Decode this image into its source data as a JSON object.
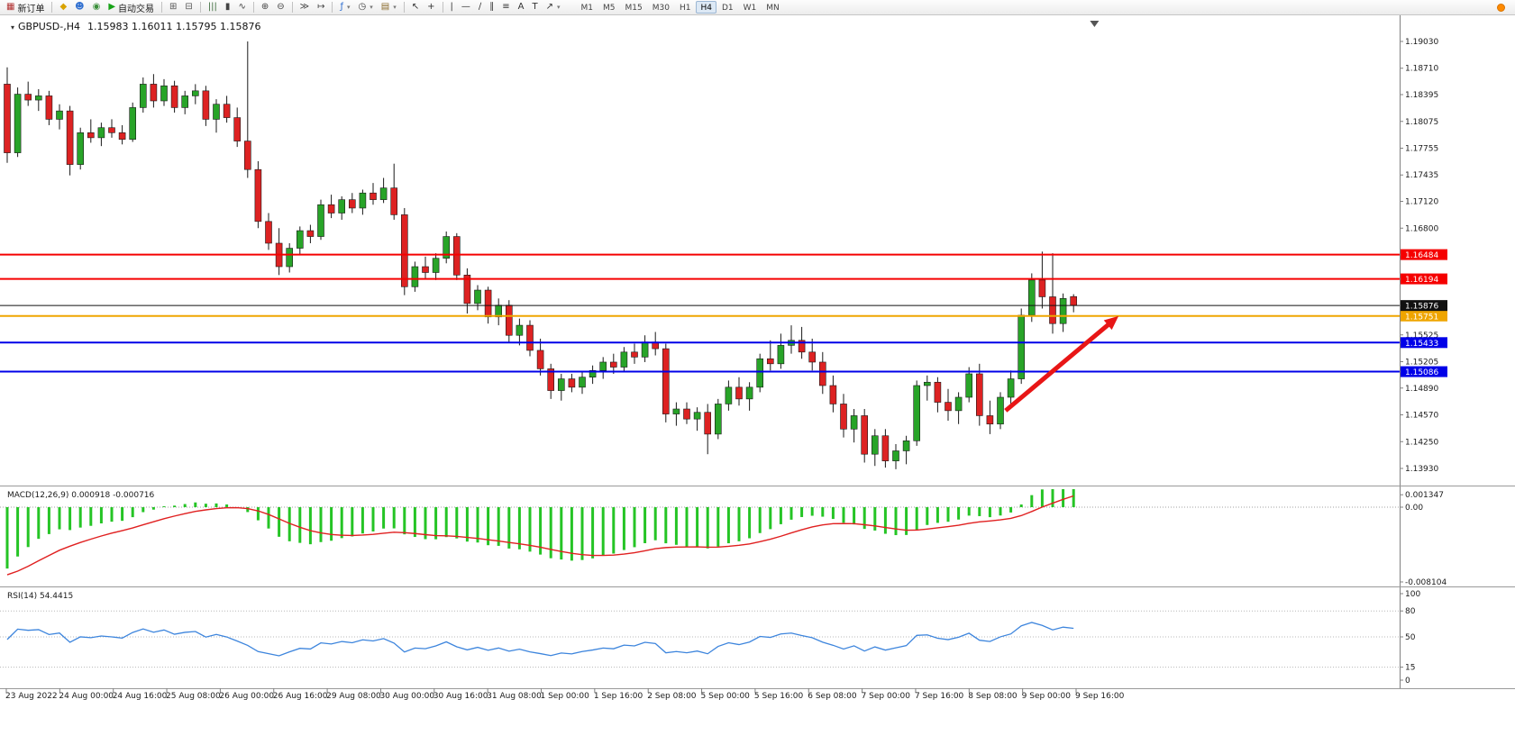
{
  "colors": {
    "bull": "#28a428",
    "bear": "#dd2222",
    "wick": "#1a1a1a",
    "macd_hist": "#25c425",
    "macd_signal": "#e02020",
    "rsi_line": "#3d85dd",
    "level_red": "#f50000",
    "level_blue": "#0000e8",
    "level_orange": "#efa500",
    "price_line": "#111111",
    "axis_text": "#1a1a1a"
  },
  "toolbar": {
    "items": [
      {
        "name": "new-order-button",
        "glyph": "▦",
        "color": "#b03030",
        "label": "新订单"
      },
      {
        "sep": true
      },
      {
        "name": "metaeditor-button",
        "glyph": "◆",
        "color": "#d9a300"
      },
      {
        "name": "community-button",
        "glyph": "☻",
        "color": "#2f6fd0"
      },
      {
        "name": "help-button",
        "glyph": "◉",
        "color": "#3a8f3a"
      },
      {
        "name": "autotrading-button",
        "glyph": "▶",
        "color": "#17a317",
        "label": "自动交易"
      },
      {
        "sep": true
      },
      {
        "name": "tile-windows-button",
        "glyph": "⊞",
        "color": "#555555"
      },
      {
        "name": "cascade-windows-button",
        "glyph": "⊟",
        "color": "#555555"
      },
      {
        "sep": true
      },
      {
        "name": "bar-chart-button",
        "glyph": "|||",
        "color": "#3a6a3a"
      },
      {
        "name": "candlestick-chart-button",
        "glyph": "▮",
        "color": "#444444"
      },
      {
        "name": "line-chart-button",
        "glyph": "∿",
        "color": "#444444"
      },
      {
        "sep": true
      },
      {
        "name": "zoom-in-button",
        "glyph": "⊕",
        "color": "#444444"
      },
      {
        "name": "zoom-out-button",
        "glyph": "⊖",
        "color": "#444444"
      },
      {
        "sep": true
      },
      {
        "name": "auto-scroll-button",
        "glyph": "≫",
        "color": "#444444"
      },
      {
        "name": "chart-shift-button",
        "glyph": "↦",
        "color": "#444444"
      },
      {
        "sep": true
      },
      {
        "name": "indicators-button",
        "glyph": "ƒ",
        "color": "#2f6fd0",
        "dropdown": true
      },
      {
        "name": "periods-button",
        "glyph": "◷",
        "color": "#444444",
        "dropdown": true
      },
      {
        "name": "templates-button",
        "glyph": "▤",
        "color": "#8a6a2a",
        "dropdown": true
      },
      {
        "sep": true
      },
      {
        "name": "cursor-button",
        "glyph": "↖",
        "color": "#333333"
      },
      {
        "name": "crosshair-button",
        "glyph": "+",
        "color": "#333333"
      },
      {
        "sep": true
      },
      {
        "name": "vertical-line-button",
        "glyph": "|",
        "color": "#333333"
      },
      {
        "name": "horizontal-line-button",
        "glyph": "—",
        "color": "#333333"
      },
      {
        "name": "trendline-button",
        "glyph": "∕",
        "color": "#333333"
      },
      {
        "name": "channel-button",
        "glyph": "∥",
        "color": "#333333"
      },
      {
        "name": "fibonacci-button",
        "glyph": "≡",
        "color": "#333333"
      },
      {
        "name": "text-button",
        "glyph": "A",
        "color": "#333333"
      },
      {
        "name": "text-label-button",
        "glyph": "T",
        "color": "#333333"
      },
      {
        "name": "arrows-button",
        "glyph": "↗",
        "color": "#333333",
        "dropdown": true
      }
    ],
    "timeframes": [
      "M1",
      "M5",
      "M15",
      "M30",
      "H1",
      "H4",
      "D1",
      "W1",
      "MN"
    ],
    "active_timeframe": "H4"
  },
  "chart_header": {
    "marker": "▾",
    "symbol": "GBPUSD-,H4",
    "open": "1.15983",
    "high": "1.16011",
    "low": "1.15795",
    "close": "1.15876"
  },
  "levels": [
    {
      "name": "resistance-line-1",
      "price": 1.16484,
      "label": "1.16484",
      "color_key": "level_red",
      "width": 2
    },
    {
      "name": "resistance-line-2",
      "price": 1.16194,
      "label": "1.16194",
      "color_key": "level_red",
      "width": 2
    },
    {
      "name": "pivot-line",
      "price": 1.15751,
      "label": "1.15751",
      "color_key": "level_orange",
      "width": 2
    },
    {
      "name": "support-line-1",
      "price": 1.15433,
      "label": "1.15433",
      "color_key": "level_blue",
      "width": 2
    },
    {
      "name": "support-line-2",
      "price": 1.15086,
      "label": "1.15086",
      "color_key": "level_blue",
      "width": 2
    }
  ],
  "current_price": {
    "price": 1.15876,
    "label": "1.15876"
  },
  "indicators": {
    "macd": {
      "label": "MACD(12,26,9)",
      "value": "0.000918",
      "signal_value": "-0.000716",
      "fast": 12,
      "slow": 26,
      "signal_period": 9,
      "axis_labels": [
        {
          "v": 0.001347,
          "text": "0.001347"
        },
        {
          "v": 0,
          "text": "0.00"
        },
        {
          "v": -0.008104,
          "text": "-0.008104"
        }
      ]
    },
    "rsi": {
      "label": "RSI(14)",
      "value": "54.4415",
      "period": 14,
      "levels": [
        80,
        50,
        15
      ],
      "axis_labels": [
        {
          "v": 100,
          "text": "100"
        },
        {
          "v": 80,
          "text": "80"
        },
        {
          "v": 50,
          "text": "50"
        },
        {
          "v": 15,
          "text": "15"
        },
        {
          "v": 0,
          "text": "0"
        }
      ]
    }
  },
  "annotations": [
    {
      "type": "arrow",
      "name": "trend-arrow",
      "from_bar": 95.5,
      "from_price": 1.1462,
      "to_bar": 106.3,
      "to_price": 1.1575,
      "color": "#e81616",
      "width": 5
    }
  ],
  "shift_marker_bar": 104,
  "chart_data": {
    "type": "candlestick",
    "symbol": "GBPUSD",
    "timeframe": "H4",
    "ylim": [
      1.1393,
      1.1903
    ],
    "y_ticks": [
      "1.19030",
      "1.18710",
      "1.18395",
      "1.18075",
      "1.17755",
      "1.17435",
      "1.17120",
      "1.16800",
      "1.15525",
      "1.15205",
      "1.14890",
      "1.14570",
      "1.14250",
      "1.13930"
    ],
    "x_labels": [
      "23 Aug 2022",
      "24 Aug 00:00",
      "24 Aug 16:00",
      "25 Aug 08:00",
      "26 Aug 00:00",
      "26 Aug 16:00",
      "29 Aug 08:00",
      "30 Aug 00:00",
      "30 Aug 16:00",
      "31 Aug 08:00",
      "1 Sep 00:00",
      "1 Sep 16:00",
      "2 Sep 08:00",
      "5 Sep 00:00",
      "5 Sep 16:00",
      "6 Sep 08:00",
      "7 Sep 00:00",
      "7 Sep 16:00",
      "8 Sep 08:00",
      "9 Sep 00:00",
      "9 Sep 16:00"
    ],
    "ohlc": [
      [
        1.1852,
        1.1872,
        1.1758,
        1.177
      ],
      [
        1.177,
        1.1848,
        1.1765,
        1.184
      ],
      [
        1.184,
        1.1855,
        1.1826,
        1.1833
      ],
      [
        1.1833,
        1.1846,
        1.182,
        1.1838
      ],
      [
        1.1838,
        1.1844,
        1.1803,
        1.181
      ],
      [
        1.181,
        1.1828,
        1.1798,
        1.182
      ],
      [
        1.182,
        1.1826,
        1.1743,
        1.1756
      ],
      [
        1.1756,
        1.18,
        1.175,
        1.1794
      ],
      [
        1.1794,
        1.181,
        1.1782,
        1.1788
      ],
      [
        1.1788,
        1.1806,
        1.1778,
        1.18
      ],
      [
        1.18,
        1.181,
        1.1788,
        1.1794
      ],
      [
        1.1794,
        1.1803,
        1.178,
        1.1786
      ],
      [
        1.1786,
        1.183,
        1.1783,
        1.1824
      ],
      [
        1.1824,
        1.186,
        1.1818,
        1.1852
      ],
      [
        1.1852,
        1.1864,
        1.1824,
        1.1832
      ],
      [
        1.1832,
        1.1858,
        1.1826,
        1.185
      ],
      [
        1.185,
        1.1856,
        1.1818,
        1.1824
      ],
      [
        1.1824,
        1.1844,
        1.1816,
        1.1838
      ],
      [
        1.1838,
        1.1852,
        1.1828,
        1.1844
      ],
      [
        1.1844,
        1.185,
        1.1802,
        1.181
      ],
      [
        1.181,
        1.1834,
        1.1794,
        1.1828
      ],
      [
        1.1828,
        1.1838,
        1.1806,
        1.1812
      ],
      [
        1.1812,
        1.1824,
        1.1777,
        1.1784
      ],
      [
        1.1784,
        1.1903,
        1.174,
        1.175
      ],
      [
        1.175,
        1.176,
        1.168,
        1.1688
      ],
      [
        1.1688,
        1.1698,
        1.1654,
        1.1662
      ],
      [
        1.1662,
        1.168,
        1.1624,
        1.1634
      ],
      [
        1.1634,
        1.1662,
        1.1627,
        1.1656
      ],
      [
        1.1656,
        1.1682,
        1.1648,
        1.1677
      ],
      [
        1.1677,
        1.1684,
        1.1662,
        1.167
      ],
      [
        1.167,
        1.1714,
        1.1666,
        1.1708
      ],
      [
        1.1708,
        1.172,
        1.1692,
        1.1698
      ],
      [
        1.1698,
        1.1718,
        1.169,
        1.1714
      ],
      [
        1.1714,
        1.1722,
        1.1698,
        1.1704
      ],
      [
        1.1704,
        1.1726,
        1.1696,
        1.1722
      ],
      [
        1.1722,
        1.1734,
        1.1708,
        1.1714
      ],
      [
        1.1714,
        1.174,
        1.171,
        1.1728
      ],
      [
        1.1728,
        1.1757,
        1.169,
        1.1696
      ],
      [
        1.1696,
        1.1704,
        1.16,
        1.161
      ],
      [
        1.161,
        1.164,
        1.1604,
        1.1634
      ],
      [
        1.1634,
        1.1646,
        1.162,
        1.1627
      ],
      [
        1.1627,
        1.165,
        1.1618,
        1.1644
      ],
      [
        1.1644,
        1.1676,
        1.1638,
        1.167
      ],
      [
        1.167,
        1.1674,
        1.1618,
        1.1624
      ],
      [
        1.1624,
        1.1632,
        1.1578,
        1.159
      ],
      [
        1.159,
        1.1612,
        1.1582,
        1.1606
      ],
      [
        1.1606,
        1.161,
        1.1566,
        1.1574
      ],
      [
        1.1574,
        1.1596,
        1.1564,
        1.1588
      ],
      [
        1.1588,
        1.1594,
        1.1544,
        1.1552
      ],
      [
        1.1552,
        1.1572,
        1.154,
        1.1564
      ],
      [
        1.1564,
        1.157,
        1.1527,
        1.1534
      ],
      [
        1.1534,
        1.1548,
        1.1504,
        1.1512
      ],
      [
        1.1512,
        1.1518,
        1.1476,
        1.1486
      ],
      [
        1.1486,
        1.1506,
        1.1474,
        1.15
      ],
      [
        1.15,
        1.1506,
        1.1484,
        1.149
      ],
      [
        1.149,
        1.1508,
        1.1482,
        1.1502
      ],
      [
        1.1502,
        1.1516,
        1.1494,
        1.151
      ],
      [
        1.151,
        1.1526,
        1.15,
        1.152
      ],
      [
        1.152,
        1.153,
        1.1506,
        1.1514
      ],
      [
        1.1514,
        1.1538,
        1.1508,
        1.1532
      ],
      [
        1.1532,
        1.1542,
        1.1518,
        1.1526
      ],
      [
        1.1526,
        1.1552,
        1.152,
        1.1544
      ],
      [
        1.1544,
        1.1556,
        1.1528,
        1.1536
      ],
      [
        1.1536,
        1.1542,
        1.1448,
        1.1458
      ],
      [
        1.1458,
        1.1472,
        1.1444,
        1.1464
      ],
      [
        1.1464,
        1.1472,
        1.1446,
        1.1452
      ],
      [
        1.1452,
        1.1466,
        1.1438,
        1.146
      ],
      [
        1.146,
        1.147,
        1.141,
        1.1434
      ],
      [
        1.1434,
        1.1476,
        1.1428,
        1.147
      ],
      [
        1.147,
        1.1498,
        1.1462,
        1.149
      ],
      [
        1.149,
        1.1502,
        1.1468,
        1.1476
      ],
      [
        1.1476,
        1.1496,
        1.1462,
        1.149
      ],
      [
        1.149,
        1.153,
        1.1484,
        1.1524
      ],
      [
        1.1524,
        1.1546,
        1.151,
        1.1518
      ],
      [
        1.1518,
        1.1554,
        1.1512,
        1.154
      ],
      [
        1.154,
        1.1564,
        1.153,
        1.1546
      ],
      [
        1.1546,
        1.1562,
        1.1524,
        1.1532
      ],
      [
        1.1532,
        1.1548,
        1.151,
        1.152
      ],
      [
        1.152,
        1.1532,
        1.1482,
        1.1492
      ],
      [
        1.1492,
        1.1504,
        1.146,
        1.147
      ],
      [
        1.147,
        1.1482,
        1.143,
        1.144
      ],
      [
        1.144,
        1.1464,
        1.1424,
        1.1456
      ],
      [
        1.1456,
        1.1464,
        1.14,
        1.141
      ],
      [
        1.141,
        1.144,
        1.1396,
        1.1432
      ],
      [
        1.1432,
        1.144,
        1.1394,
        1.1402
      ],
      [
        1.1402,
        1.1422,
        1.1392,
        1.1414
      ],
      [
        1.1414,
        1.1432,
        1.1398,
        1.1426
      ],
      [
        1.1426,
        1.1498,
        1.142,
        1.1492
      ],
      [
        1.1492,
        1.1504,
        1.1474,
        1.1496
      ],
      [
        1.1496,
        1.1502,
        1.146,
        1.1472
      ],
      [
        1.1472,
        1.1488,
        1.145,
        1.1462
      ],
      [
        1.1462,
        1.1484,
        1.1446,
        1.1478
      ],
      [
        1.1478,
        1.1514,
        1.1472,
        1.1506
      ],
      [
        1.1506,
        1.1518,
        1.1444,
        1.1456
      ],
      [
        1.1456,
        1.1474,
        1.1434,
        1.1446
      ],
      [
        1.1446,
        1.1484,
        1.144,
        1.1478
      ],
      [
        1.1478,
        1.151,
        1.147,
        1.15
      ],
      [
        1.15,
        1.1584,
        1.1494,
        1.1576
      ],
      [
        1.1576,
        1.1626,
        1.1568,
        1.1618
      ],
      [
        1.1618,
        1.1652,
        1.1584,
        1.1598
      ],
      [
        1.1598,
        1.165,
        1.1554,
        1.1566
      ],
      [
        1.1566,
        1.1602,
        1.1556,
        1.1596
      ],
      [
        1.15983,
        1.16011,
        1.15795,
        1.15876
      ]
    ]
  }
}
